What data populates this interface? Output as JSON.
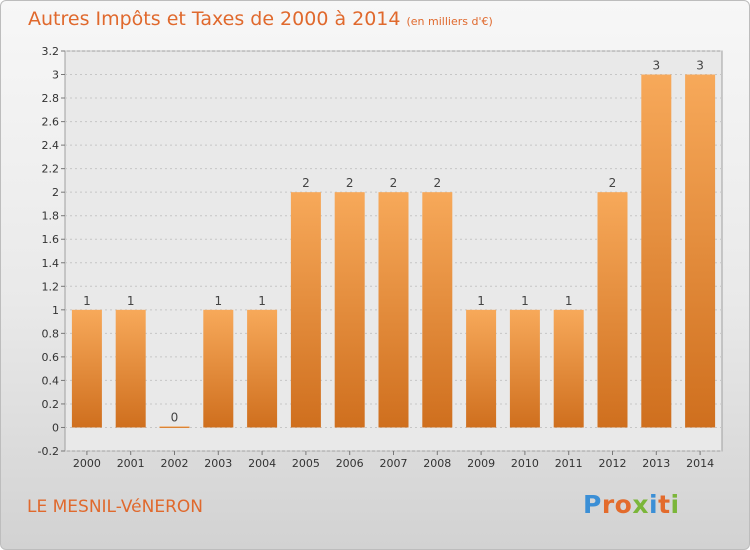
{
  "header": {
    "title": "Autres Impôts et Taxes de 2000 à 2014",
    "subtitle": "(en milliers d'€)"
  },
  "footer": {
    "town": "LE MESNIL-VéNERON",
    "logo": [
      "P",
      "r",
      "o",
      "x",
      "i",
      "t",
      "i"
    ]
  },
  "colors": {
    "accent": "#e0692d",
    "bar_light": "#f7a95a",
    "bar_dark": "#cf6f1e",
    "logo": [
      "#3b8fd6",
      "#e36b2c",
      "#e36b2c",
      "#7bb63a",
      "#3b8fd6",
      "#e36b2c",
      "#7bb63a"
    ]
  },
  "chart_data": {
    "type": "bar",
    "title": "Autres Impôts et Taxes de 2000 à 2014",
    "subtitle": "(en milliers d'€)",
    "categories": [
      "2000",
      "2001",
      "2002",
      "2003",
      "2004",
      "2005",
      "2006",
      "2007",
      "2008",
      "2009",
      "2010",
      "2011",
      "2012",
      "2013",
      "2014"
    ],
    "values": [
      1,
      1,
      0,
      1,
      1,
      2,
      2,
      2,
      2,
      1,
      1,
      1,
      2,
      3,
      3
    ],
    "data_labels": [
      "1",
      "1",
      "0",
      "1",
      "1",
      "2",
      "2",
      "2",
      "2",
      "1",
      "1",
      "1",
      "2",
      "3",
      "3"
    ],
    "yticks": [
      "3.2",
      "3",
      "2.8",
      "2.6",
      "2.4",
      "2.2",
      "2",
      "1.8",
      "1.6",
      "1.4",
      "1.2",
      "1",
      "0.8",
      "0.6",
      "0.4",
      "0.2",
      "0",
      "-0.2"
    ],
    "ylim": [
      -0.2,
      3.2
    ],
    "grid": true,
    "legend": "none"
  }
}
